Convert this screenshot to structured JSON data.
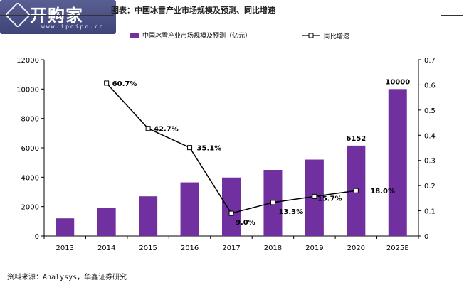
{
  "header": {
    "logo_text": "开购家",
    "logo_url": "www.ipoipo.cn",
    "title": "图表：中国冰雪产业市场规模及预测、同比增速"
  },
  "footer": {
    "source": "资料来源：Analysys，华鑫证券研究"
  },
  "colors": {
    "bar": "#7030a0",
    "line": "#000000",
    "marker_fill": "#ffffff"
  },
  "chart_data": {
    "type": "bar",
    "title": "",
    "categories": [
      "2013",
      "2014",
      "2015",
      "2016",
      "2017",
      "2018",
      "2019",
      "2020",
      "2025E"
    ],
    "series": [
      {
        "name": "中国冰雪产业市场规模及预测（亿元）",
        "type": "bar",
        "axis": "left",
        "values": [
          1200,
          1900,
          2700,
          3650,
          3980,
          4500,
          5200,
          6152,
          10000
        ],
        "data_labels": [
          "",
          "",
          "",
          "",
          "",
          "",
          "",
          "6152",
          "10000"
        ]
      },
      {
        "name": "同比增速",
        "type": "line",
        "axis": "right",
        "values": [
          null,
          0.607,
          0.427,
          0.351,
          0.09,
          0.133,
          0.157,
          0.18,
          null
        ],
        "data_labels": [
          "",
          "60.7%",
          "42.7%",
          "35.1%",
          "9.0%",
          "13.3%",
          "15.7%",
          "18.0%",
          ""
        ]
      }
    ],
    "left_axis": {
      "min": 0,
      "max": 12000,
      "ticks": [
        "0",
        "2000",
        "4000",
        "6000",
        "8000",
        "10000",
        "12000"
      ]
    },
    "right_axis": {
      "min": 0,
      "max": 0.7,
      "ticks": [
        "0",
        "0.1",
        "0.2",
        "0.3",
        "0.4",
        "0.5",
        "0.6",
        "0.7"
      ]
    },
    "grid": false,
    "legend": "top"
  }
}
